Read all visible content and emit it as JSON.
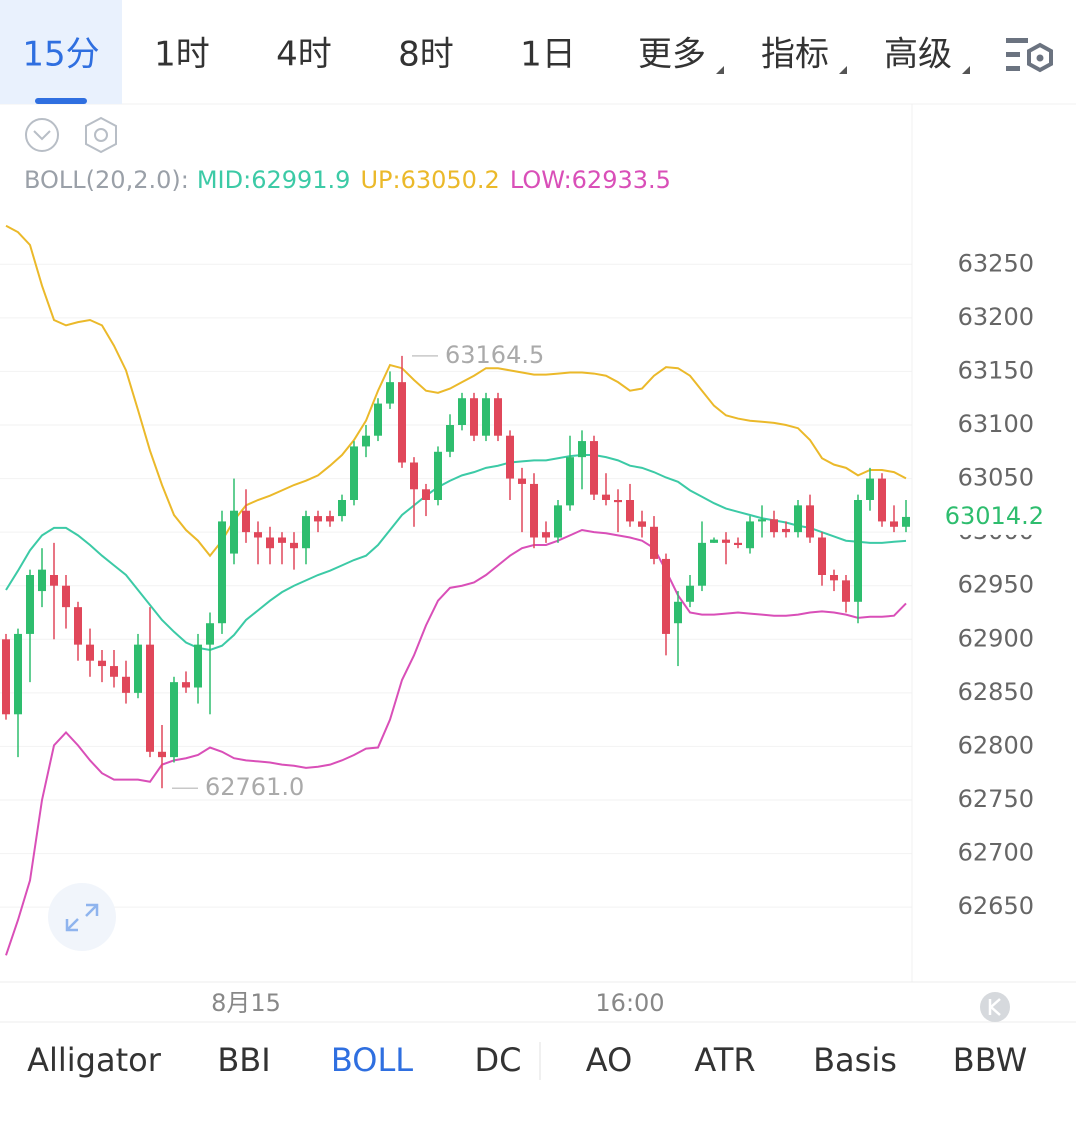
{
  "top_tabs": [
    {
      "label": "15分",
      "selected": true
    },
    {
      "label": "1时"
    },
    {
      "label": "4时"
    },
    {
      "label": "8时"
    },
    {
      "label": "1日"
    },
    {
      "label": "更多",
      "dropdown": true
    },
    {
      "label": "指标",
      "dropdown": true
    },
    {
      "label": "高级",
      "dropdown": true
    }
  ],
  "bottom_tabs": [
    {
      "label": "Alligator"
    },
    {
      "label": "BBI"
    },
    {
      "label": "BOLL",
      "selected": true
    },
    {
      "label": "DC"
    },
    {
      "label": "AO"
    },
    {
      "label": "ATR"
    },
    {
      "label": "Basis"
    },
    {
      "label": "BBW"
    }
  ],
  "chart_data": {
    "type": "candlestick",
    "indicator_label": "BOLL(20,2.0):",
    "legend_separator": ":",
    "categories": [
      null,
      null,
      null,
      null,
      null,
      null,
      null,
      null,
      null,
      null,
      null,
      null,
      null,
      null,
      null,
      null,
      null,
      null,
      null,
      null,
      "8月15",
      null,
      null,
      null,
      null,
      null,
      null,
      null,
      null,
      null,
      null,
      null,
      null,
      null,
      null,
      null,
      null,
      null,
      null,
      null,
      null,
      null,
      null,
      null,
      null,
      null,
      null,
      null,
      null,
      null,
      null,
      null,
      "16:00",
      null,
      null,
      null,
      null,
      null,
      null,
      null,
      null,
      null,
      null,
      null,
      null,
      null,
      null,
      null,
      null,
      null,
      null,
      null,
      null,
      null,
      null,
      null
    ],
    "open": [
      62900,
      62830,
      62905,
      62945,
      62960,
      62950,
      62930,
      62895,
      62880,
      62875,
      62865,
      62850,
      62895,
      62795,
      62790,
      62860,
      62855,
      62895,
      62915,
      62980,
      63020,
      63000,
      62995,
      62995,
      62990,
      62985,
      63015,
      63015,
      63015,
      63030,
      63080,
      63090,
      63120,
      63140,
      63065,
      63040,
      63030,
      63075,
      63100,
      63125,
      63090,
      63125,
      63090,
      63050,
      63045,
      63000,
      62995,
      63025,
      63070,
      63085,
      63035,
      63030,
      63030,
      63010,
      63005,
      62975,
      62915,
      62935,
      62950,
      62990,
      62993,
      62990,
      62985,
      63010,
      63012,
      63003,
      63000,
      63025,
      62995,
      62960,
      62955,
      62935,
      63030,
      63050,
      63010,
      63005
    ],
    "high": [
      62905,
      62910,
      62965,
      62985,
      62990,
      62960,
      62935,
      62910,
      62890,
      62890,
      62880,
      62905,
      62930,
      62820,
      62865,
      62870,
      62905,
      62925,
      63020,
      63050,
      63040,
      63010,
      63005,
      63000,
      63000,
      63020,
      63020,
      63020,
      63035,
      63085,
      63100,
      63125,
      63150,
      63164.5,
      63070,
      63045,
      63080,
      63110,
      63130,
      63130,
      63130,
      63130,
      63095,
      63060,
      63055,
      63010,
      63030,
      63090,
      63095,
      63090,
      63055,
      63040,
      63045,
      63020,
      63015,
      62980,
      62945,
      62960,
      63010,
      62995,
      63000,
      62995,
      63015,
      63025,
      63020,
      63010,
      63030,
      63035,
      63000,
      62965,
      62960,
      63035,
      63060,
      63055,
      63025,
      63030
    ],
    "low": [
      62825,
      62790,
      62860,
      62930,
      62900,
      62910,
      62880,
      62865,
      62860,
      62855,
      62840,
      62845,
      62790,
      62761,
      62785,
      62850,
      62840,
      62830,
      62905,
      62970,
      62990,
      62970,
      62970,
      62970,
      62965,
      62970,
      63000,
      63005,
      63010,
      63025,
      63070,
      63085,
      63115,
      63060,
      63005,
      63015,
      63025,
      63070,
      63095,
      63085,
      63085,
      63085,
      63030,
      63000,
      62985,
      62990,
      62990,
      63020,
      63040,
      63030,
      63025,
      63000,
      63005,
      62995,
      62970,
      62885,
      62875,
      62930,
      62945,
      62990,
      62970,
      62985,
      62980,
      62995,
      62995,
      62995,
      62995,
      62990,
      62950,
      62945,
      62925,
      62915,
      63020,
      63005,
      63000,
      63000
    ],
    "close": [
      62830,
      62905,
      62960,
      62965,
      62950,
      62930,
      62895,
      62880,
      62875,
      62865,
      62850,
      62895,
      62795,
      62790,
      62860,
      62855,
      62895,
      62915,
      63010,
      63020,
      63000,
      62995,
      62985,
      62990,
      62985,
      63015,
      63010,
      63010,
      63030,
      63080,
      63090,
      63120,
      63140,
      63065,
      63040,
      63030,
      63075,
      63100,
      63125,
      63090,
      63125,
      63090,
      63050,
      63045,
      62995,
      62995,
      63025,
      63070,
      63085,
      63035,
      63030,
      63028,
      63010,
      63005,
      62975,
      62905,
      62935,
      62950,
      62990,
      62993,
      62990,
      62988,
      63010,
      63012,
      63000,
      63000,
      63025,
      62995,
      62960,
      62955,
      62935,
      63030,
      63050,
      63010,
      63005,
      63014.2
    ],
    "up_color": "#2ebd6e",
    "down_color": "#e0475a",
    "series": [
      {
        "name": "MID",
        "color": "#3ccaa6",
        "values": [
          62946,
          62964,
          62983,
          62997,
          63004,
          63004,
          62997,
          62988,
          62978,
          62969,
          62960,
          62946,
          62932,
          62918,
          62907,
          62897,
          62892,
          62890,
          62894,
          62904,
          62918,
          62927,
          62936,
          62944,
          62950,
          62955,
          62960,
          62964,
          62969,
          62974,
          62978,
          62988,
          63002,
          63016,
          63025,
          63034,
          63042,
          63048,
          63053,
          63056,
          63060,
          63062,
          63065,
          63066,
          63067,
          63067,
          63069,
          63071,
          63072,
          63072,
          63070,
          63067,
          63062,
          63060,
          63056,
          63051,
          63047,
          63039,
          63033,
          63027,
          63022,
          63019,
          63016,
          63013,
          63011,
          63009,
          63006,
          63004,
          63000,
          62996,
          62992,
          62991,
          62990,
          62990,
          62991,
          62991.9
        ]
      },
      {
        "name": "UP",
        "color": "#ebb92a",
        "values": [
          63286,
          63280,
          63268,
          63230,
          63198,
          63193,
          63196,
          63198,
          63193,
          63174,
          63151,
          63114,
          63076,
          63044,
          63016,
          63002,
          62992,
          62978,
          62992,
          63011,
          63025,
          63030,
          63034,
          63039,
          63044,
          63048,
          63053,
          63062,
          63072,
          63086,
          63104,
          63132,
          63156,
          63153,
          63142,
          63132,
          63130,
          63134,
          63140,
          63146,
          63153,
          63153,
          63151,
          63149,
          63147,
          63147,
          63148,
          63149,
          63149,
          63148,
          63146,
          63140,
          63132,
          63134,
          63146,
          63154,
          63153,
          63146,
          63132,
          63118,
          63109,
          63106,
          63104,
          63103,
          63102,
          63100,
          63097,
          63086,
          63069,
          63063,
          63060,
          63053,
          63058,
          63058,
          63056,
          63050.2
        ]
      },
      {
        "name": "LOW",
        "color": "#d94fb8",
        "values": [
          62605,
          62638,
          62675,
          62750,
          62801,
          62813,
          62801,
          62787,
          62775,
          62769,
          62769,
          62769,
          62767,
          62783,
          62787,
          62789,
          62792,
          62799,
          62795,
          62789,
          62787,
          62786,
          62785,
          62783,
          62782,
          62780,
          62781,
          62783,
          62787,
          62792,
          62798,
          62799,
          62825,
          62862,
          62885,
          62913,
          62936,
          62948,
          62950,
          62953,
          62960,
          62969,
          62978,
          62985,
          62988,
          62988,
          62992,
          62997,
          63002,
          63000,
          62999,
          62997,
          62995,
          62992,
          62985,
          62964,
          62941,
          62925,
          62923,
          62923,
          62924,
          62925,
          62924,
          62923,
          62922,
          62922,
          62923,
          62925,
          62926,
          62925,
          62923,
          62920,
          62921,
          62921,
          62922,
          62933.5
        ]
      }
    ],
    "annotations": [
      {
        "value": 63164.5,
        "label": "63164.5",
        "of": "high"
      },
      {
        "value": 62761,
        "label": "62761.0",
        "of": "low"
      }
    ],
    "last_price": {
      "value": 63014.2,
      "label": "63014.2"
    },
    "ylim": [
      62582,
      63296
    ],
    "yticks": [
      62650,
      62700,
      62750,
      62800,
      62850,
      62900,
      62950,
      63000,
      63050,
      63100,
      63150,
      63200,
      63250
    ],
    "grid": true
  }
}
